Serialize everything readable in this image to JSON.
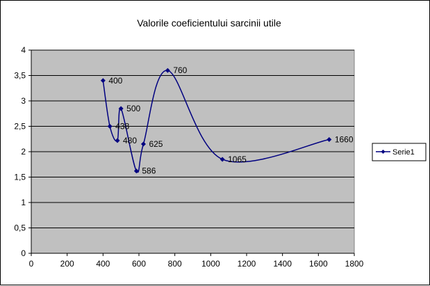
{
  "colors": {
    "plot_background": "#c0c0c0",
    "series": "#000080",
    "gridline": "#000000"
  },
  "chart_data": {
    "type": "scatter",
    "subtype": "smoothed-line-with-markers",
    "title": "Valorile coeficientului sarcinii utile",
    "xlabel": "",
    "ylabel": "",
    "xlim": [
      0,
      1800
    ],
    "ylim": [
      0,
      4
    ],
    "x_ticks": [
      "0",
      "200",
      "400",
      "600",
      "800",
      "1000",
      "1200",
      "1400",
      "1600",
      "1800"
    ],
    "y_ticks": [
      "0",
      "0,5",
      "1",
      "1,5",
      "2",
      "2,5",
      "3",
      "3,5",
      "4"
    ],
    "grid": "horizontal",
    "legend_position": "right",
    "series": [
      {
        "name": "Serie1",
        "points": [
          {
            "x": 400,
            "y": 3.4,
            "label": "400"
          },
          {
            "x": 438,
            "y": 2.5,
            "label": "438"
          },
          {
            "x": 480,
            "y": 2.22,
            "label": "480"
          },
          {
            "x": 500,
            "y": 2.85,
            "label": "500"
          },
          {
            "x": 586,
            "y": 1.62,
            "label": "586"
          },
          {
            "x": 625,
            "y": 2.15,
            "label": "625"
          },
          {
            "x": 760,
            "y": 3.6,
            "label": "760"
          },
          {
            "x": 1065,
            "y": 1.85,
            "label": "1065"
          },
          {
            "x": 1660,
            "y": 2.24,
            "label": "1660"
          }
        ]
      }
    ]
  }
}
